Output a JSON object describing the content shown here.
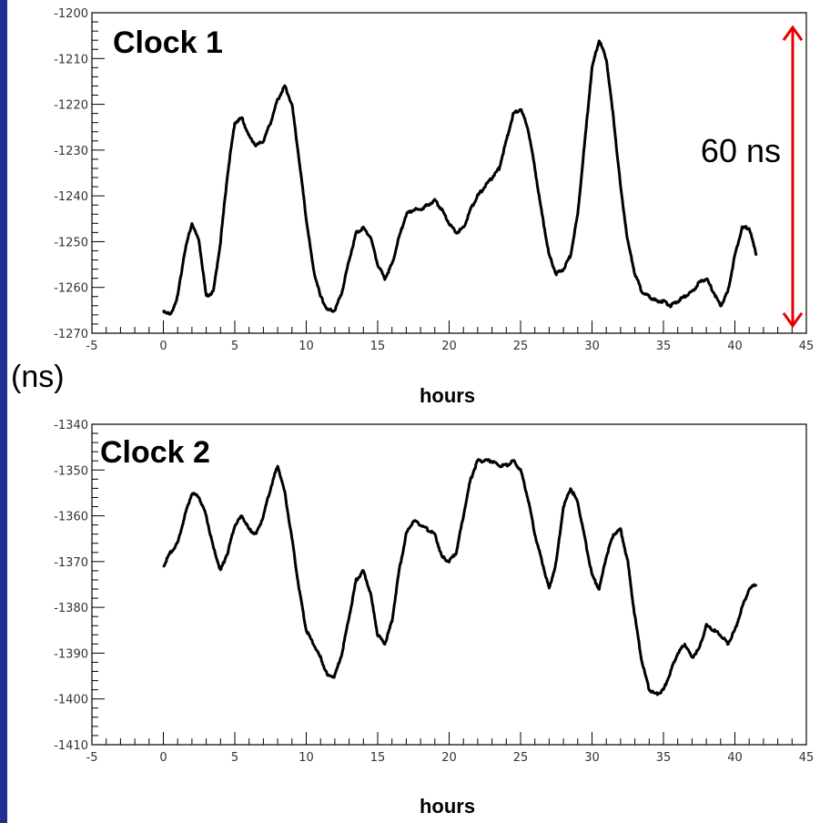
{
  "y_unit_label": "(ns)",
  "colors": {
    "left_bar": "#1f2f8f",
    "annotation_arrow": "#e60000",
    "trace": "#000000"
  },
  "chart_data": [
    {
      "type": "line",
      "title": "Clock 1",
      "xlabel": "hours",
      "ylabel": "(ns)",
      "xlim": [
        -5,
        45
      ],
      "ylim": [
        -1270,
        -1200
      ],
      "x_ticks": [
        -5,
        0,
        5,
        10,
        15,
        20,
        25,
        30,
        35,
        40,
        45
      ],
      "y_ticks": [
        -1200,
        -1210,
        -1220,
        -1230,
        -1240,
        -1250,
        -1260,
        -1270
      ],
      "grid": false,
      "annotation": {
        "text": "60 ns",
        "from_y": -1264,
        "to_y": -1204
      },
      "series": [
        {
          "x": [
            0,
            0.5,
            1,
            1.5,
            2,
            2.5,
            3,
            3.5,
            4,
            4.5,
            5,
            5.5,
            6,
            6.5,
            7,
            7.5,
            8,
            8.5,
            9,
            9.5,
            10,
            10.5,
            11,
            11.5,
            12,
            12.5,
            13,
            13.5,
            14,
            14.5,
            15,
            15.5,
            16,
            16.5,
            17,
            17.5,
            18,
            18.5,
            19,
            19.5,
            20,
            20.5,
            21,
            21.5,
            22,
            22.5,
            23,
            23.5,
            24,
            24.5,
            25,
            25.5,
            26,
            26.5,
            27,
            27.5,
            28,
            28.5,
            29,
            29.5,
            30,
            30.5,
            31,
            31.5,
            32,
            32.5,
            33,
            33.5,
            34,
            34.5,
            35,
            35.5,
            36,
            36.5,
            37,
            37.5,
            38,
            38.5,
            39,
            39.5,
            40,
            40.5,
            41,
            41.5
          ],
          "y": [
            -1265,
            -1266,
            -1262,
            -1252,
            -1246,
            -1250,
            -1262,
            -1261,
            -1250,
            -1235,
            -1224,
            -1223,
            -1227,
            -1229,
            -1228,
            -1224,
            -1219,
            -1216,
            -1220,
            -1232,
            -1245,
            -1256,
            -1262,
            -1265,
            -1265,
            -1261,
            -1254,
            -1248,
            -1247,
            -1249,
            -1255,
            -1258,
            -1255,
            -1249,
            -1244,
            -1243,
            -1243,
            -1242,
            -1241,
            -1243,
            -1246,
            -1248,
            -1247,
            -1243,
            -1240,
            -1238,
            -1236,
            -1234,
            -1228,
            -1222,
            -1221,
            -1225,
            -1234,
            -1244,
            -1253,
            -1257,
            -1256,
            -1253,
            -1244,
            -1228,
            -1212,
            -1206,
            -1210,
            -1223,
            -1238,
            -1250,
            -1257,
            -1261,
            -1262,
            -1263,
            -1263,
            -1264,
            -1263,
            -1262,
            -1261,
            -1259,
            -1258,
            -1261,
            -1264,
            -1261,
            -1253,
            -1247,
            -1247,
            -1253
          ]
        }
      ]
    },
    {
      "type": "line",
      "title": "Clock 2",
      "xlabel": "hours",
      "ylabel": "(ns)",
      "xlim": [
        -5,
        45
      ],
      "ylim": [
        -1410,
        -1340
      ],
      "x_ticks": [
        -5,
        0,
        5,
        10,
        15,
        20,
        25,
        30,
        35,
        40,
        45
      ],
      "y_ticks": [
        -1340,
        -1350,
        -1360,
        -1370,
        -1380,
        -1390,
        -1400,
        -1410
      ],
      "grid": false,
      "series": [
        {
          "x": [
            0,
            0.5,
            1,
            1.5,
            2,
            2.5,
            3,
            3.5,
            4,
            4.5,
            5,
            5.5,
            6,
            6.5,
            7,
            7.5,
            8,
            8.5,
            9,
            9.5,
            10,
            10.5,
            11,
            11.5,
            12,
            12.5,
            13,
            13.5,
            14,
            14.5,
            15,
            15.5,
            16,
            16.5,
            17,
            17.5,
            18,
            18.5,
            19,
            19.5,
            20,
            20.5,
            21,
            21.5,
            22,
            22.5,
            23,
            23.5,
            24,
            24.5,
            25,
            25.5,
            26,
            26.5,
            27,
            27.5,
            28,
            28.5,
            29,
            29.5,
            30,
            30.5,
            31,
            31.5,
            32,
            32.5,
            33,
            33.5,
            34,
            34.5,
            35,
            35.5,
            36,
            36.5,
            37,
            37.5,
            38,
            38.5,
            39,
            39.5,
            40,
            40.5,
            41,
            41.5
          ],
          "y": [
            -1371,
            -1368,
            -1366,
            -1360,
            -1355,
            -1356,
            -1360,
            -1367,
            -1372,
            -1368,
            -1362,
            -1360,
            -1363,
            -1364,
            -1360,
            -1354,
            -1349,
            -1355,
            -1365,
            -1376,
            -1385,
            -1388,
            -1391,
            -1395,
            -1395,
            -1390,
            -1382,
            -1374,
            -1372,
            -1377,
            -1386,
            -1388,
            -1383,
            -1372,
            -1364,
            -1361,
            -1362,
            -1363,
            -1364,
            -1369,
            -1370,
            -1368,
            -1360,
            -1352,
            -1348,
            -1348,
            -1348,
            -1349,
            -1349,
            -1348,
            -1350,
            -1356,
            -1364,
            -1370,
            -1376,
            -1370,
            -1358,
            -1354,
            -1357,
            -1365,
            -1373,
            -1376,
            -1369,
            -1364,
            -1363,
            -1370,
            -1382,
            -1392,
            -1398,
            -1399,
            -1398,
            -1394,
            -1390,
            -1388,
            -1391,
            -1389,
            -1384,
            -1385,
            -1386,
            -1388,
            -1385,
            -1380,
            -1376,
            -1375
          ]
        }
      ]
    }
  ]
}
